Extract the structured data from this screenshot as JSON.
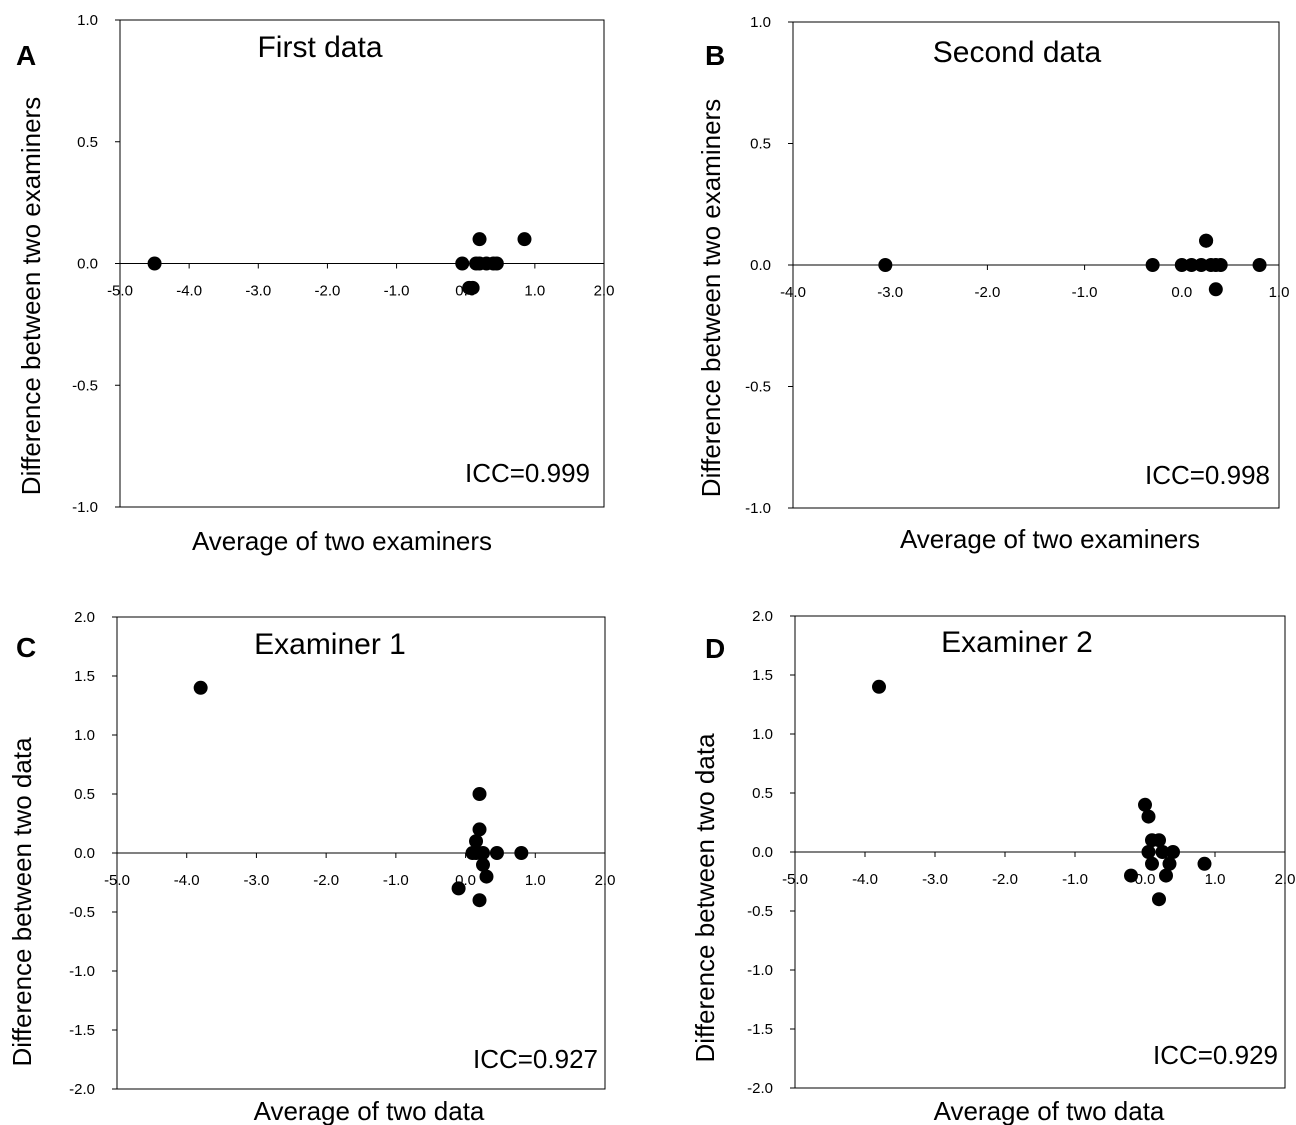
{
  "chart_data": [
    {
      "type": "scatter",
      "panel_label": "A",
      "title": "First data",
      "xlabel": "Average of  two examiners",
      "ylabel": "Difference between two examiners",
      "annotation": "ICC=0.999",
      "xlim": [
        -5.0,
        2.0
      ],
      "ylim": [
        -1.0,
        1.0
      ],
      "xticks": [
        "-5.0",
        "-4.0",
        "-3.0",
        "-2.0",
        "-1.0",
        "0.0",
        "1.0",
        "2.0"
      ],
      "yticks": [
        "-1.0",
        "-0.5",
        "0.0",
        "0.5",
        "1.0"
      ],
      "grid": false,
      "legend": "none",
      "marker_color": "#000000",
      "series": [
        {
          "x": [
            -4.5,
            -0.05,
            0.05,
            0.1,
            0.15,
            0.2,
            0.3,
            0.4,
            0.45,
            0.2,
            0.85
          ],
          "y": [
            0.0,
            0.0,
            -0.1,
            -0.1,
            0.0,
            0.0,
            0.0,
            0.0,
            0.0,
            0.1,
            0.1
          ]
        }
      ]
    },
    {
      "type": "scatter",
      "panel_label": "B",
      "title": "Second data",
      "xlabel": "Average of  two examiners",
      "ylabel": "Difference between two examiners",
      "annotation": "ICC=0.998",
      "xlim": [
        -4.0,
        1.0
      ],
      "ylim": [
        -1.0,
        1.0
      ],
      "xticks": [
        "-4.0",
        "-3.0",
        "-2.0",
        "-1.0",
        "0.0",
        "1.0"
      ],
      "yticks": [
        "-1.0",
        "-0.5",
        "0.0",
        "0.5",
        "1.0"
      ],
      "grid": false,
      "legend": "none",
      "marker_color": "#000000",
      "series": [
        {
          "x": [
            -3.05,
            -0.3,
            0.0,
            0.1,
            0.2,
            0.25,
            0.3,
            0.35,
            0.4,
            0.25,
            0.35,
            0.8
          ],
          "y": [
            0.0,
            0.0,
            0.0,
            0.0,
            0.0,
            0.1,
            0.0,
            0.0,
            0.0,
            0.1,
            -0.1,
            0.0
          ]
        }
      ]
    },
    {
      "type": "scatter",
      "panel_label": "C",
      "title": "Examiner 1",
      "xlabel": "Average of  two data",
      "ylabel": "Difference between two data",
      "annotation": "ICC=0.927",
      "xlim": [
        -5.0,
        2.0
      ],
      "ylim": [
        -2.0,
        2.0
      ],
      "xticks": [
        "-5.0",
        "-4.0",
        "-3.0",
        "-2.0",
        "-1.0",
        "0.0",
        "1.0",
        "2.0"
      ],
      "yticks": [
        "-2.0",
        "-1.5",
        "-1.0",
        "-0.5",
        "0.0",
        "0.5",
        "1.0",
        "1.5",
        "2.0"
      ],
      "grid": false,
      "legend": "none",
      "marker_color": "#000000",
      "series": [
        {
          "x": [
            -3.8,
            -0.1,
            0.1,
            0.15,
            0.2,
            0.15,
            0.2,
            0.25,
            0.3,
            0.2,
            0.45,
            0.8,
            0.25
          ],
          "y": [
            1.4,
            -0.3,
            0.0,
            0.1,
            0.5,
            0.0,
            0.2,
            -0.1,
            -0.2,
            -0.4,
            0.0,
            0.0,
            0.0
          ]
        }
      ]
    },
    {
      "type": "scatter",
      "panel_label": "D",
      "title": "Examiner 2",
      "xlabel": "Average of  two data",
      "ylabel": "Difference between two data",
      "annotation": "ICC=0.929",
      "xlim": [
        -5.0,
        2.0
      ],
      "ylim": [
        -2.0,
        2.0
      ],
      "xticks": [
        "-5.0",
        "-4.0",
        "-3.0",
        "-2.0",
        "-1.0",
        "0.0",
        "1.0",
        "2.0"
      ],
      "yticks": [
        "-2.0",
        "-1.5",
        "-1.0",
        "-0.5",
        "0.0",
        "0.5",
        "1.0",
        "1.5",
        "2.0"
      ],
      "grid": false,
      "legend": "none",
      "marker_color": "#000000",
      "series": [
        {
          "x": [
            -3.8,
            -0.2,
            0.0,
            0.05,
            0.1,
            0.1,
            0.2,
            0.25,
            0.3,
            0.35,
            0.4,
            0.2,
            0.85,
            0.05
          ],
          "y": [
            1.4,
            -0.2,
            0.4,
            0.3,
            0.1,
            -0.1,
            0.1,
            0.0,
            -0.2,
            -0.1,
            0.0,
            -0.4,
            -0.1,
            0.0
          ]
        }
      ]
    }
  ]
}
